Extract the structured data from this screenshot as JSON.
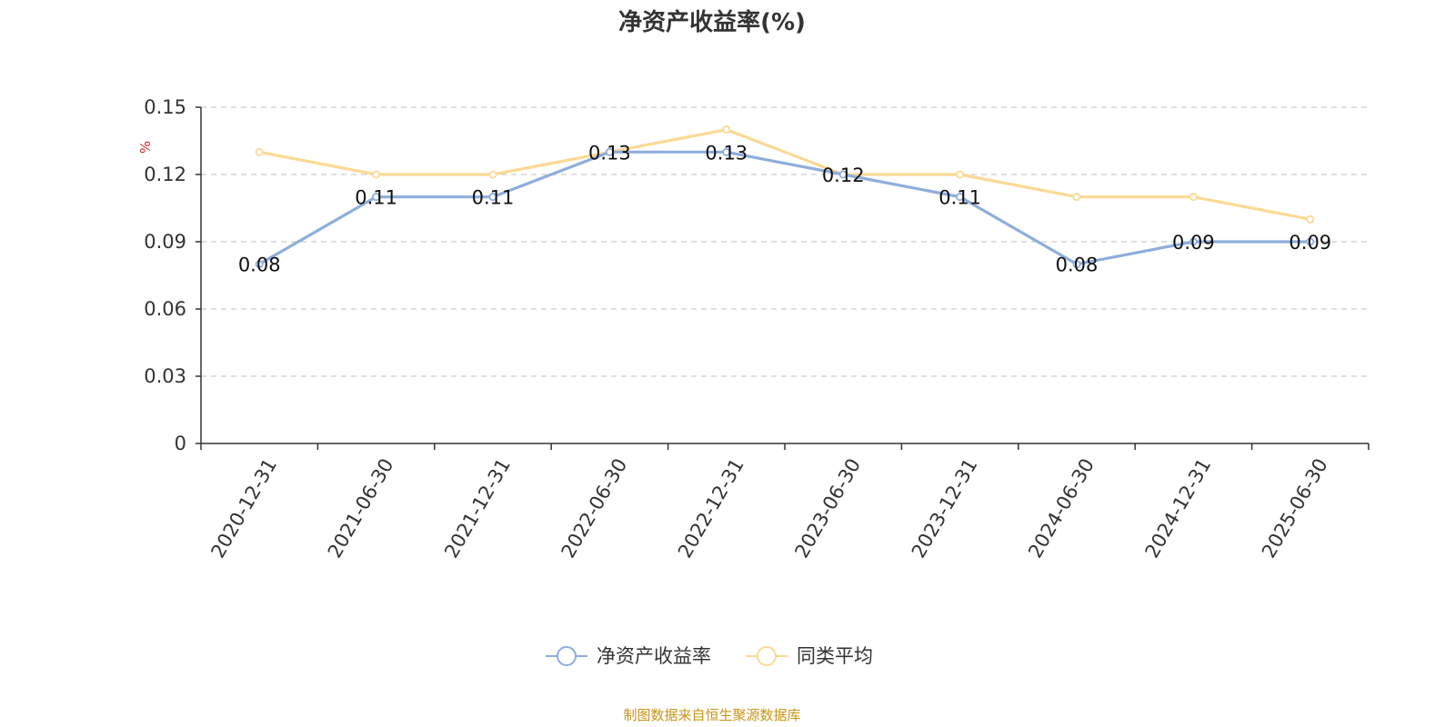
{
  "chart_data": {
    "type": "line",
    "title": "净资产收益率(%)",
    "y_unit": "%",
    "categories": [
      "2020-12-31",
      "2021-06-30",
      "2021-12-31",
      "2022-06-30",
      "2022-12-31",
      "2023-06-30",
      "2023-12-31",
      "2024-06-30",
      "2024-12-31",
      "2025-06-30"
    ],
    "ylim": [
      0,
      0.15
    ],
    "yticks": [
      0,
      0.03,
      0.06,
      0.09,
      0.12,
      0.15
    ],
    "ytick_labels": [
      "0",
      "0.03",
      "0.06",
      "0.09",
      "0.12",
      "0.15"
    ],
    "grid": true,
    "legend_position": "bottom",
    "series": [
      {
        "name": "净资产收益率",
        "color": "#8eaedb",
        "values": [
          0.08,
          0.11,
          0.11,
          0.13,
          0.13,
          0.12,
          0.11,
          0.08,
          0.09,
          0.09
        ],
        "labels": [
          "0.08",
          "0.11",
          "0.11",
          "0.13",
          "0.13",
          "0.12",
          "0.11",
          "0.08",
          "0.09",
          "0.09"
        ],
        "show_labels": true
      },
      {
        "name": "同类平均",
        "color": "#fbd994",
        "values": [
          0.13,
          0.12,
          0.12,
          0.13,
          0.14,
          0.12,
          0.12,
          0.11,
          0.11,
          0.1
        ],
        "show_labels": false
      }
    ],
    "source": "制图数据来自恒生聚源数据库"
  }
}
